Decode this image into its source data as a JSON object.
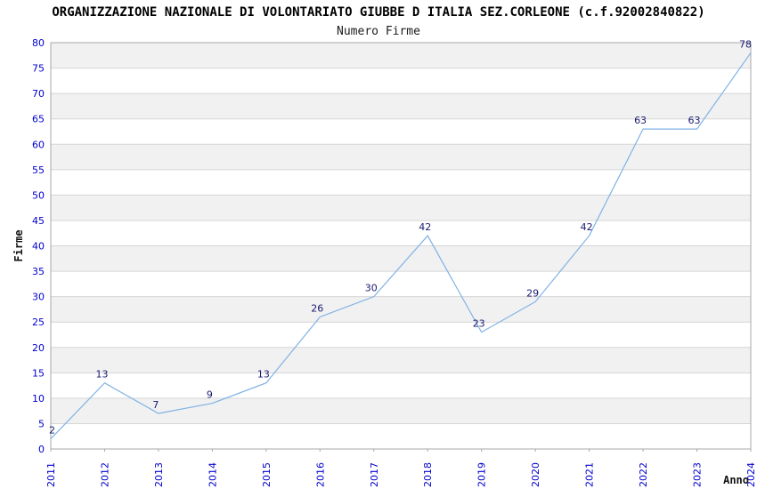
{
  "header": {
    "title": "ORGANIZZAZIONE NAZIONALE DI VOLONTARIATO GIUBBE D ITALIA SEZ.CORLEONE (c.f.92002840822)",
    "subtitle": "Numero Firme"
  },
  "chart_data": {
    "type": "line",
    "title": "Numero Firme",
    "categories": [
      "2011",
      "2012",
      "2013",
      "2014",
      "2015",
      "2016",
      "2017",
      "2018",
      "2019",
      "2020",
      "2021",
      "2022",
      "2023",
      "2024"
    ],
    "series": [
      {
        "name": "Numero Firme",
        "values": [
          2,
          13,
          7,
          9,
          13,
          26,
          30,
          42,
          23,
          29,
          42,
          63,
          63,
          78
        ]
      }
    ],
    "point_labels": [
      "2",
      "13",
      "7",
      "9",
      "13",
      "26",
      "30",
      "42",
      "23",
      "29",
      "42",
      "63",
      "63",
      "78"
    ],
    "xlabel": "Anno",
    "ylabel": "Firme",
    "ylim": [
      0,
      80
    ],
    "ytick_step": 5,
    "yticks": [
      0,
      5,
      10,
      15,
      20,
      25,
      30,
      35,
      40,
      45,
      50,
      55,
      60,
      65,
      70,
      75,
      80
    ],
    "grid": "horizontal gridlines every 5 with alternating gray/white bands",
    "legend_position": "none",
    "colors": {
      "line": "#7fb2e6",
      "point_label": "#191970",
      "tick_label": "#0000cd",
      "band": "#f1f1f1",
      "gridline": "#d6d6d6",
      "frame": "#a8a8a8",
      "axis_title": "#111111",
      "title": "#000000"
    }
  }
}
